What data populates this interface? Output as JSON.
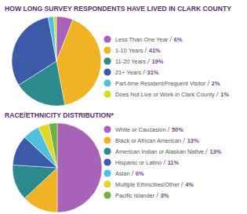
{
  "chart_data": [
    {
      "type": "pie",
      "title": "HOW LONG SURVEY RESPONDENTS HAVE LIVED IN CLARK COUNTY",
      "categories": [
        "Less Than One Year",
        "1-10 Years",
        "11-20 Years",
        "21+ Years",
        "Part-time Resident/Frequent Visitor",
        "Does Not Live or Work in Clark County"
      ],
      "values": [
        6,
        41,
        19,
        31,
        2,
        1
      ],
      "value_labels": [
        "6%",
        "41%",
        "19%",
        "31%",
        "2%",
        "1%"
      ],
      "colors": [
        "#a862b8",
        "#f0b323",
        "#2b8a8c",
        "#3b5ba9",
        "#4fc0e0",
        "#d2dc2c"
      ],
      "legend": "right"
    },
    {
      "type": "pie",
      "title": "RACE/ETHNICITY DISTRIBUTION*",
      "categories": [
        "White or Caucasion",
        "Black or African American",
        "American Indian or Alaskan Native",
        "Hispanic or Latino",
        "Asian",
        "Multiple Ethnicities/Other",
        "Pacific Islander"
      ],
      "values": [
        50,
        13,
        13,
        11,
        6,
        4,
        3
      ],
      "value_labels": [
        "50%",
        "13%",
        "13%",
        "11%",
        "6%",
        "4%",
        "3%"
      ],
      "colors": [
        "#a862b8",
        "#f0b323",
        "#2b8a8c",
        "#3b5ba9",
        "#4fc0e0",
        "#e3d52a",
        "#6db33f"
      ],
      "legend": "right"
    }
  ]
}
